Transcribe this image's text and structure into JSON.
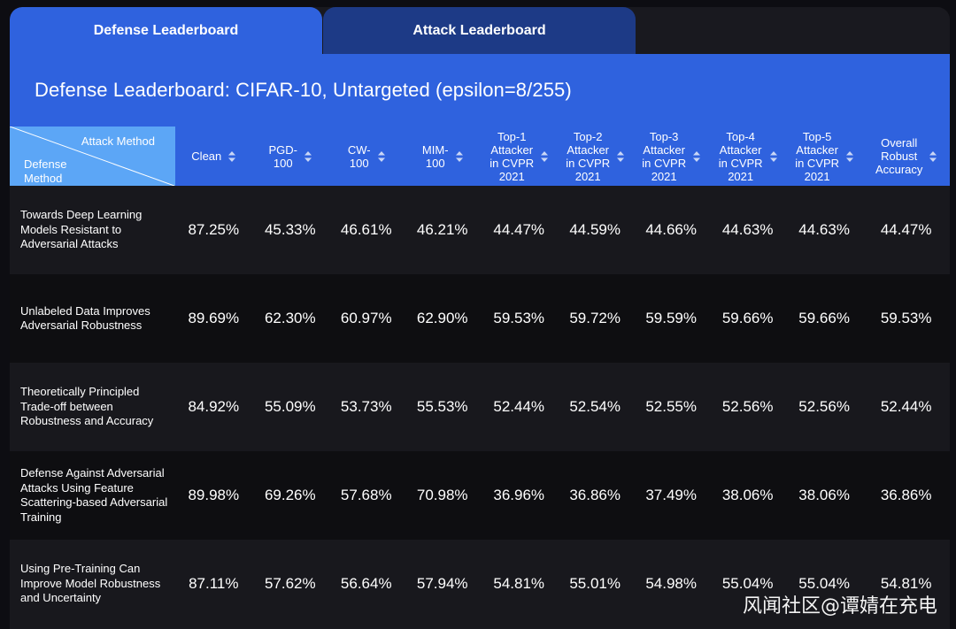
{
  "tabs": [
    {
      "label": "Defense Leaderboard",
      "active": true
    },
    {
      "label": "Attack Leaderboard",
      "active": false
    }
  ],
  "banner_title": "Defense Leaderboard: CIFAR-10, Untargeted (epsilon=8/255)",
  "corner": {
    "attack": "Attack Method",
    "defense_line1": "Defense",
    "defense_line2": "Method"
  },
  "columns": [
    "Clean",
    "PGD-\n100",
    "CW-\n100",
    "MIM-\n100",
    "Top-1\nAttacker\nin CVPR\n2021",
    "Top-2\nAttacker\nin CVPR\n2021",
    "Top-3\nAttacker\nin CVPR\n2021",
    "Top-4\nAttacker\nin CVPR\n2021",
    "Top-5\nAttacker\nin CVPR\n2021",
    "Overall\nRobust\nAccuracy"
  ],
  "rows": [
    {
      "method": "Towards Deep Learning Models Resistant to Adversarial Attacks",
      "values": [
        "87.25%",
        "45.33%",
        "46.61%",
        "46.21%",
        "44.47%",
        "44.59%",
        "44.66%",
        "44.63%",
        "44.63%",
        "44.47%"
      ]
    },
    {
      "method": "Unlabeled Data Improves Adversarial Robustness",
      "values": [
        "89.69%",
        "62.30%",
        "60.97%",
        "62.90%",
        "59.53%",
        "59.72%",
        "59.59%",
        "59.66%",
        "59.66%",
        "59.53%"
      ]
    },
    {
      "method": "Theoretically Principled Trade-off between Robustness and Accuracy",
      "values": [
        "84.92%",
        "55.09%",
        "53.73%",
        "55.53%",
        "52.44%",
        "52.54%",
        "52.55%",
        "52.56%",
        "52.56%",
        "52.44%"
      ]
    },
    {
      "method": "Defense Against Adversarial Attacks Using Feature Scattering-based Adversarial Training",
      "values": [
        "89.98%",
        "69.26%",
        "57.68%",
        "70.98%",
        "36.96%",
        "36.86%",
        "37.49%",
        "38.06%",
        "38.06%",
        "36.86%"
      ]
    },
    {
      "method": "Using Pre-Training Can Improve Model Robustness and Uncertainty",
      "values": [
        "87.11%",
        "57.62%",
        "56.64%",
        "57.94%",
        "54.81%",
        "55.01%",
        "54.98%",
        "55.04%",
        "55.04%",
        "54.81%"
      ]
    }
  ],
  "watermark": "风闻社区@谭婧在充电",
  "colors": {
    "accent": "#2f62de",
    "tab_inactive": "#1d3a86",
    "corner": "#5ca6f6",
    "row_a": "#18181d",
    "row_b": "#0e0e11"
  }
}
